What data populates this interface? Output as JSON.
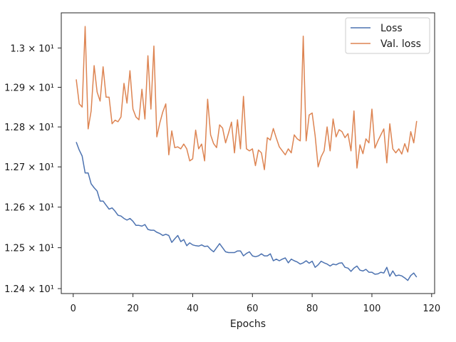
{
  "chart_data": {
    "type": "line",
    "title": "",
    "xlabel": "Epochs",
    "ylabel": "",
    "xlim": [
      -4,
      121
    ],
    "ylim": [
      12.388,
      13.09
    ],
    "yscale": "log",
    "grid": false,
    "legend_position": "top-right",
    "x_ticks": [
      0,
      20,
      40,
      60,
      80,
      100,
      120
    ],
    "y_ticks": [
      {
        "value": 12.4,
        "label": "1.24 × 10¹"
      },
      {
        "value": 12.5,
        "label": "1.25 × 10¹"
      },
      {
        "value": 12.6,
        "label": "1.26 × 10¹"
      },
      {
        "value": 12.7,
        "label": "1.27 × 10¹"
      },
      {
        "value": 12.8,
        "label": "1.28 × 10¹"
      },
      {
        "value": 12.9,
        "label": "1.29 × 10¹"
      },
      {
        "value": 13.0,
        "label": "1.3 × 10¹"
      }
    ],
    "series": [
      {
        "name": "Loss",
        "color": "#4c72b0",
        "x": [
          1,
          2,
          3,
          4,
          5,
          6,
          7,
          8,
          9,
          10,
          11,
          12,
          13,
          14,
          15,
          16,
          17,
          18,
          19,
          20,
          21,
          22,
          23,
          24,
          25,
          26,
          27,
          28,
          29,
          30,
          31,
          32,
          33,
          34,
          35,
          36,
          37,
          38,
          39,
          40,
          41,
          42,
          43,
          44,
          45,
          46,
          47,
          48,
          49,
          50,
          51,
          52,
          53,
          54,
          55,
          56,
          57,
          58,
          59,
          60,
          61,
          62,
          63,
          64,
          65,
          66,
          67,
          68,
          69,
          70,
          71,
          72,
          73,
          74,
          75,
          76,
          77,
          78,
          79,
          80,
          81,
          82,
          83,
          84,
          85,
          86,
          87,
          88,
          89,
          90,
          91,
          92,
          93,
          94,
          95,
          96,
          97,
          98,
          99,
          100,
          101,
          102,
          103,
          104,
          105,
          106,
          107,
          108,
          109,
          110,
          111,
          112,
          113,
          114,
          115
        ],
        "values": [
          12.762,
          12.742,
          12.727,
          12.685,
          12.685,
          12.658,
          12.648,
          12.64,
          12.615,
          12.615,
          12.605,
          12.595,
          12.598,
          12.59,
          12.58,
          12.578,
          12.572,
          12.568,
          12.572,
          12.565,
          12.555,
          12.555,
          12.553,
          12.557,
          12.545,
          12.543,
          12.543,
          12.538,
          12.535,
          12.53,
          12.533,
          12.53,
          12.513,
          12.522,
          12.53,
          12.515,
          12.52,
          12.505,
          12.512,
          12.507,
          12.505,
          12.504,
          12.507,
          12.503,
          12.504,
          12.496,
          12.49,
          12.5,
          12.51,
          12.5,
          12.49,
          12.488,
          12.488,
          12.488,
          12.492,
          12.492,
          12.48,
          12.486,
          12.49,
          12.48,
          12.478,
          12.48,
          12.485,
          12.48,
          12.48,
          12.485,
          12.468,
          12.472,
          12.468,
          12.472,
          12.475,
          12.463,
          12.472,
          12.468,
          12.465,
          12.46,
          12.463,
          12.468,
          12.462,
          12.467,
          12.452,
          12.458,
          12.467,
          12.463,
          12.46,
          12.455,
          12.46,
          12.458,
          12.462,
          12.463,
          12.452,
          12.45,
          12.442,
          12.45,
          12.455,
          12.445,
          12.443,
          12.447,
          12.44,
          12.44,
          12.435,
          12.436,
          12.44,
          12.438,
          12.452,
          12.43,
          12.443,
          12.431,
          12.433,
          12.431,
          12.426,
          12.42,
          12.432,
          12.438,
          12.428
        ]
      },
      {
        "name": "Val. loss",
        "color": "#dd8452",
        "x": [
          1,
          2,
          3,
          4,
          5,
          6,
          7,
          8,
          9,
          10,
          11,
          12,
          13,
          14,
          15,
          16,
          17,
          18,
          19,
          20,
          21,
          22,
          23,
          24,
          25,
          26,
          27,
          28,
          29,
          30,
          31,
          32,
          33,
          34,
          35,
          36,
          37,
          38,
          39,
          40,
          41,
          42,
          43,
          44,
          45,
          46,
          47,
          48,
          49,
          50,
          51,
          52,
          53,
          54,
          55,
          56,
          57,
          58,
          59,
          60,
          61,
          62,
          63,
          64,
          65,
          66,
          67,
          68,
          69,
          70,
          71,
          72,
          73,
          74,
          75,
          76,
          77,
          78,
          79,
          80,
          81,
          82,
          83,
          84,
          85,
          86,
          87,
          88,
          89,
          90,
          91,
          92,
          93,
          94,
          95,
          96,
          97,
          98,
          99,
          100,
          101,
          102,
          103,
          104,
          105,
          106,
          107,
          108,
          109,
          110,
          111,
          112,
          113,
          114,
          115
        ],
        "values": [
          12.92,
          12.858,
          12.85,
          13.055,
          12.795,
          12.84,
          12.955,
          12.888,
          12.865,
          12.952,
          12.875,
          12.875,
          12.808,
          12.817,
          12.813,
          12.825,
          12.91,
          12.86,
          12.942,
          12.845,
          12.825,
          12.818,
          12.895,
          12.82,
          12.98,
          12.845,
          13.005,
          12.775,
          12.81,
          12.838,
          12.858,
          12.73,
          12.79,
          12.748,
          12.75,
          12.745,
          12.757,
          12.745,
          12.715,
          12.72,
          12.792,
          12.745,
          12.757,
          12.715,
          12.87,
          12.78,
          12.758,
          12.748,
          12.805,
          12.797,
          12.76,
          12.785,
          12.812,
          12.735,
          12.818,
          12.745,
          12.877,
          12.745,
          12.74,
          12.745,
          12.703,
          12.742,
          12.735,
          12.693,
          12.773,
          12.767,
          12.796,
          12.772,
          12.75,
          12.74,
          12.73,
          12.745,
          12.735,
          12.78,
          12.77,
          12.765,
          13.03,
          12.765,
          12.83,
          12.835,
          12.778,
          12.7,
          12.725,
          12.74,
          12.8,
          12.74,
          12.82,
          12.775,
          12.793,
          12.788,
          12.773,
          12.783,
          12.74,
          12.84,
          12.697,
          12.755,
          12.733,
          12.77,
          12.76,
          12.845,
          12.747,
          12.765,
          12.78,
          12.795,
          12.71,
          12.808,
          12.745,
          12.735,
          12.745,
          12.732,
          12.758,
          12.737,
          12.788,
          12.76,
          12.815
        ]
      }
    ]
  }
}
